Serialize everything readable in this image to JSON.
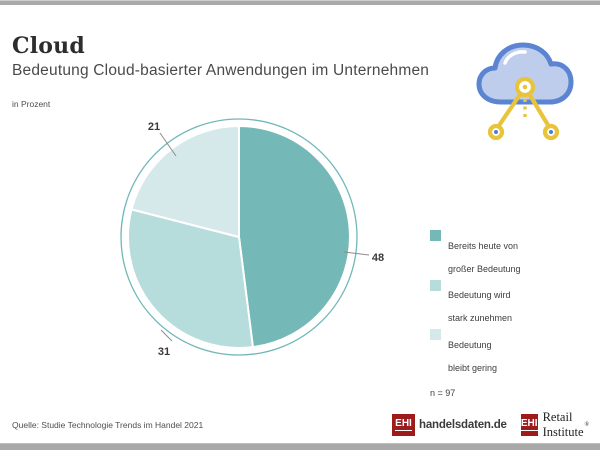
{
  "page": {
    "title": "Cloud",
    "subtitle": "Bedeutung Cloud-basierter Anwendungen im Unternehmen",
    "unit_note": "in Prozent"
  },
  "chart_data": {
    "type": "pie",
    "title": "Cloud",
    "subtitle": "Bedeutung Cloud-basierter Anwendungen im Unternehmen",
    "unit": "Prozent",
    "start_angle_deg": -90,
    "direction": "clockwise",
    "slices": [
      {
        "label": "Bereits heute von großer Bedeutung",
        "value": 48,
        "color": "#74b8b8"
      },
      {
        "label": "Bedeutung wird stark zunehmen",
        "value": 31,
        "color": "#b6dcdc"
      },
      {
        "label": "Bedeutung bleibt gering",
        "value": 21,
        "color": "#d6e9ea"
      }
    ],
    "ring_color": "#70b8b8",
    "slice_separator_color": "#ffffff",
    "sample_note": "n = 97",
    "source": "Quelle: Studie Technologie Trends im Handel 2021",
    "legend_position": "right"
  },
  "legend": {
    "items": [
      {
        "line1": "Bereits heute von",
        "line2": "großer Bedeutung",
        "color": "#74b8b8"
      },
      {
        "line1": "Bedeutung wird",
        "line2": "stark zunehmen",
        "color": "#b6dcdc"
      },
      {
        "line1": "Bedeutung",
        "line2": "bleibt gering",
        "color": "#d6e9ea"
      }
    ],
    "sample_note": "n = 97"
  },
  "icon": {
    "name": "cloud-network-icon",
    "cloud_fill": "#bfcdec",
    "cloud_stroke": "#5b84d2",
    "network_color": "#e8c43c",
    "node_dot_color": "#4a7fd4"
  },
  "footer": {
    "source": "Quelle: Studie Technologie Trends im Handel 2021",
    "logos": [
      {
        "mark": "EHI",
        "label": "handelsdaten.de"
      },
      {
        "mark": "EHI",
        "label": "Retail Institute",
        "registered": "®"
      }
    ]
  }
}
